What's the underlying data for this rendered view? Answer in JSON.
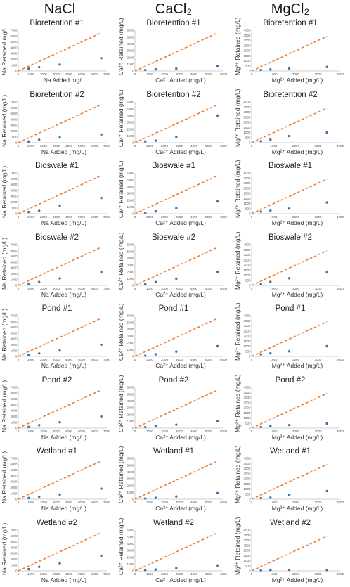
{
  "columns": [
    "NaCl",
    "CaCl₂",
    "MgCl₂"
  ],
  "chart_data": [
    {
      "id": "nacl-bioretention-1",
      "type": "scatter",
      "title": "Bioretention #1",
      "xlabel": "Na Added mg/L",
      "ylabel": "Na Retained mg/L",
      "xlim": [
        0,
        7000
      ],
      "ylim": [
        0,
        7000
      ],
      "x_ticks": [
        0,
        1000,
        2000,
        3000,
        4000,
        5000,
        6000,
        7000
      ],
      "y_ticks": [
        0,
        1000,
        2000,
        3000,
        4000,
        5000,
        6000,
        7000
      ],
      "x": [
        820,
        1650,
        3280,
        6560
      ],
      "y": [
        400,
        650,
        1100,
        2200
      ],
      "line": {
        "name": "",
        "x": [
          0,
          6560
        ],
        "y": [
          0,
          6560
        ]
      }
    },
    {
      "id": "cacl2-bioretention-1",
      "type": "scatter",
      "title": "Bioretention #1",
      "xlabel": "Ca²⁺ Added (mg/L)",
      "ylabel": "Ca²⁺ Retained (mg/L)",
      "xlim": [
        0,
        6000
      ],
      "ylim": [
        0,
        6000
      ],
      "x_ticks": [
        0,
        1000,
        2000,
        3000,
        4000,
        5000,
        6000
      ],
      "y_ticks": [
        0,
        1000,
        2000,
        3000,
        4000,
        5000,
        6000
      ],
      "x": [
        700,
        1400,
        2800,
        5600
      ],
      "y": [
        150,
        250,
        350,
        700
      ],
      "line": {
        "name": "",
        "x": [
          0,
          5600
        ],
        "y": [
          0,
          5600
        ]
      }
    },
    {
      "id": "mgcl2-bioretention-1",
      "type": "scatter",
      "title": "Bioretention #1",
      "xlabel": "Mg²⁺ Added (mg/L)",
      "ylabel": "Mg²⁺ Retained (mg/L)",
      "xlim": [
        0,
        4000
      ],
      "ylim": [
        0,
        4000
      ],
      "x_ticks": [
        0,
        1000,
        2000,
        3000,
        4000
      ],
      "y_ticks": [
        0,
        500,
        1000,
        1500,
        2000,
        2500,
        3000,
        3500,
        4000
      ],
      "x": [
        420,
        850,
        1700,
        3400
      ],
      "y": [
        100,
        150,
        250,
        400
      ],
      "line": {
        "name": "",
        "x": [
          0,
          3400
        ],
        "y": [
          0,
          3400
        ]
      }
    },
    {
      "id": "nacl-bioretention-2",
      "type": "scatter",
      "title": "Bioretention #2",
      "xlabel": "Na Added (mg/L)",
      "ylabel": "Na Retained (mg/L)",
      "xlim": [
        0,
        7000
      ],
      "ylim": [
        0,
        7000
      ],
      "x_ticks": [
        0,
        1000,
        2000,
        3000,
        4000,
        5000,
        6000,
        7000
      ],
      "y_ticks": [
        0,
        1000,
        2000,
        3000,
        4000,
        5000,
        6000,
        7000
      ],
      "x": [
        820,
        1650,
        3280,
        6560
      ],
      "y": [
        200,
        500,
        900,
        1400
      ],
      "line": {
        "name": "",
        "x": [
          0,
          6560
        ],
        "y": [
          0,
          6560
        ]
      }
    },
    {
      "id": "cacl2-bioretention-2",
      "type": "scatter",
      "title": "Bioretention #2",
      "xlabel": "Ca²⁺ Added (mg/L)",
      "ylabel": "Ca²⁺ Retained (mg/L)",
      "xlim": [
        0,
        6000
      ],
      "ylim": [
        0,
        6000
      ],
      "x_ticks": [
        0,
        1000,
        2000,
        3000,
        4000,
        5000,
        6000
      ],
      "y_ticks": [
        0,
        1000,
        2000,
        3000,
        4000,
        5000,
        6000
      ],
      "x": [
        700,
        1400,
        2800,
        5600
      ],
      "y": [
        200,
        300,
        800,
        4000
      ],
      "line": {
        "name": "",
        "x": [
          0,
          5600
        ],
        "y": [
          0,
          5600
        ]
      }
    },
    {
      "id": "mgcl2-bioretention-2",
      "type": "scatter",
      "title": "Bioretention #2",
      "xlabel": "Mg²⁺ Added (mg/L)",
      "ylabel": "Mg²⁺ Retained (mg/L)",
      "xlim": [
        0,
        4000
      ],
      "ylim": [
        0,
        4000
      ],
      "x_ticks": [
        0,
        1000,
        2000,
        3000,
        4000
      ],
      "y_ticks": [
        0,
        500,
        1000,
        1500,
        2000,
        2500,
        3000,
        3500,
        4000
      ],
      "x": [
        420,
        850,
        1700,
        3400
      ],
      "y": [
        150,
        300,
        650,
        1000
      ],
      "line": {
        "name": "",
        "x": [
          0,
          3400
        ],
        "y": [
          0,
          3400
        ]
      }
    },
    {
      "id": "nacl-bioswale-1",
      "type": "scatter",
      "title": "Bioswale #1",
      "xlabel": "Na Added (mg/L)",
      "ylabel": "Na Retained (mg/L)",
      "xlim": [
        0,
        7000
      ],
      "ylim": [
        0,
        7000
      ],
      "x_ticks": [
        0,
        1000,
        2000,
        3000,
        4000,
        5000,
        6000,
        7000
      ],
      "y_ticks": [
        0,
        1000,
        2000,
        3000,
        4000,
        5000,
        6000,
        7000
      ],
      "x": [
        820,
        1650,
        3280,
        6560
      ],
      "y": [
        300,
        500,
        1400,
        2700
      ],
      "line": {
        "name": "",
        "x": [
          0,
          6560
        ],
        "y": [
          0,
          6560
        ]
      }
    },
    {
      "id": "cacl2-bioswale-1",
      "type": "scatter",
      "title": "Bioswale #1",
      "xlabel": "Ca²⁺ Added (mg/L)",
      "ylabel": "Ca²⁺ Retained (mg/L)",
      "xlim": [
        0,
        6000
      ],
      "ylim": [
        0,
        6000
      ],
      "x_ticks": [
        0,
        1000,
        2000,
        3000,
        4000,
        5000,
        6000
      ],
      "y_ticks": [
        0,
        1000,
        2000,
        3000,
        4000,
        5000,
        6000
      ],
      "x": [
        700,
        1400,
        2800,
        5600
      ],
      "y": [
        150,
        350,
        800,
        1800
      ],
      "line": {
        "name": "",
        "x": [
          0,
          5600
        ],
        "y": [
          0,
          5600
        ]
      }
    },
    {
      "id": "mgcl2-bioswale-1",
      "type": "scatter",
      "title": "Bioswale #1",
      "xlabel": "Mg²⁺ Added (mg/L)",
      "ylabel": "Mg²⁺ Retained (mg/L)",
      "xlim": [
        0,
        4000
      ],
      "ylim": [
        0,
        4000
      ],
      "x_ticks": [
        0,
        1000,
        2000,
        3000,
        4000
      ],
      "y_ticks": [
        0,
        500,
        1000,
        1500,
        2000,
        2500,
        3000,
        3500,
        4000
      ],
      "x": [
        420,
        850,
        1700,
        3400
      ],
      "y": [
        200,
        300,
        500,
        1100
      ],
      "line": {
        "name": "",
        "x": [
          0,
          3400
        ],
        "y": [
          0,
          3400
        ]
      }
    },
    {
      "id": "nacl-bioswale-2",
      "type": "scatter",
      "title": "Bioswale #2",
      "xlabel": "Na Added (mg/L)",
      "ylabel": "Na Retained (mg/L)",
      "xlim": [
        0,
        7000
      ],
      "ylim": [
        0,
        7000
      ],
      "x_ticks": [
        0,
        1000,
        2000,
        3000,
        4000,
        5000,
        6000,
        7000
      ],
      "y_ticks": [
        0,
        1000,
        2000,
        3000,
        4000,
        5000,
        6000,
        7000
      ],
      "x": [
        820,
        1650,
        3280,
        6560
      ],
      "y": [
        300,
        600,
        1200,
        2300
      ],
      "line": {
        "name": "",
        "x": [
          0,
          6560
        ],
        "y": [
          0,
          6560
        ]
      }
    },
    {
      "id": "cacl2-bioswale-2",
      "type": "scatter",
      "title": "Bioswale #2",
      "xlabel": "Ca²⁺ Added (mg/L)",
      "ylabel": "Ca²⁺ Retained (mg/L)",
      "xlim": [
        0,
        6000
      ],
      "ylim": [
        0,
        6000
      ],
      "x_ticks": [
        0,
        1000,
        2000,
        3000,
        4000,
        5000,
        6000
      ],
      "y_ticks": [
        0,
        1000,
        2000,
        3000,
        4000,
        5000,
        6000
      ],
      "x": [
        700,
        1400,
        2800,
        5600
      ],
      "y": [
        200,
        500,
        1000,
        2000
      ],
      "line": {
        "name": "",
        "x": [
          0,
          5600
        ],
        "y": [
          0,
          5600
        ]
      }
    },
    {
      "id": "mgcl2-bioswale-2",
      "type": "scatter",
      "title": "Bioswale #2",
      "xlabel": "Mg²⁺ Added (mg/L)",
      "ylabel": "Mg²⁺ Retained (mg/L)",
      "xlim": [
        0,
        4000
      ],
      "ylim": [
        0,
        4000
      ],
      "x_ticks": [
        0,
        1000,
        2000,
        3000,
        4000
      ],
      "y_ticks": [
        0,
        500,
        1000,
        1500,
        2000,
        2500,
        3000,
        3500,
        4000
      ],
      "x": [
        420,
        850,
        1700,
        3400
      ],
      "y": [
        150,
        350,
        700,
        1300
      ],
      "line": {
        "name": "",
        "x": [
          0,
          3400
        ],
        "y": [
          0,
          3400
        ]
      }
    },
    {
      "id": "nacl-pond-1",
      "type": "scatter",
      "title": "Pond #1",
      "xlabel": "Na Added (mg/L)",
      "ylabel": "Na Retained (mg/L)",
      "xlim": [
        0,
        7000
      ],
      "ylim": [
        0,
        7000
      ],
      "x_ticks": [
        0,
        1000,
        2000,
        3000,
        4000,
        5000,
        6000,
        7000
      ],
      "y_ticks": [
        0,
        1000,
        2000,
        3000,
        4000,
        5000,
        6000,
        7000
      ],
      "x": [
        820,
        1650,
        3280,
        6560
      ],
      "y": [
        250,
        500,
        1000,
        2000
      ],
      "line": {
        "name": "",
        "x": [
          0,
          6560
        ],
        "y": [
          0,
          6560
        ]
      }
    },
    {
      "id": "cacl2-pond-1",
      "type": "scatter",
      "title": "Pond #1",
      "xlabel": "Ca²⁺ Added (mg/L)",
      "ylabel": "Ca²⁺ Retained (mg/L)",
      "xlim": [
        0,
        6000
      ],
      "ylim": [
        0,
        6000
      ],
      "x_ticks": [
        0,
        1000,
        2000,
        3000,
        4000,
        5000,
        6000
      ],
      "y_ticks": [
        0,
        1000,
        2000,
        3000,
        4000,
        5000,
        6000
      ],
      "x": [
        700,
        1400,
        2800,
        5600
      ],
      "y": [
        100,
        300,
        700,
        1500
      ],
      "line": {
        "name": "",
        "x": [
          0,
          5600
        ],
        "y": [
          0,
          5600
        ]
      }
    },
    {
      "id": "mgcl2-pond-1",
      "type": "scatter",
      "title": "Pond #1",
      "xlabel": "Mg²⁺ Added (mg/L)",
      "ylabel": "Mg²⁺ Retained (mg/L)",
      "xlim": [
        0,
        4000
      ],
      "ylim": [
        0,
        4000
      ],
      "x_ticks": [
        0,
        1000,
        2000,
        3000,
        4000
      ],
      "y_ticks": [
        0,
        500,
        1000,
        1500,
        2000,
        2500,
        3000,
        3500,
        4000
      ],
      "x": [
        420,
        850,
        1700,
        3400
      ],
      "y": [
        200,
        300,
        500,
        1000
      ],
      "line": {
        "name": "",
        "x": [
          0,
          3400
        ],
        "y": [
          0,
          3400
        ]
      }
    },
    {
      "id": "nacl-pond-2",
      "type": "scatter",
      "title": "Pond #2",
      "xlabel": "Na Added (mg/L)",
      "ylabel": "Na Retained (mg/L)",
      "xlim": [
        0,
        7000
      ],
      "ylim": [
        0,
        7000
      ],
      "x_ticks": [
        0,
        1000,
        2000,
        3000,
        4000,
        5000,
        6000,
        7000
      ],
      "y_ticks": [
        0,
        1000,
        2000,
        3000,
        4000,
        5000,
        6000,
        7000
      ],
      "x": [
        820,
        1650,
        3280,
        6560
      ],
      "y": [
        200,
        500,
        1000,
        2000
      ],
      "line": {
        "name": "",
        "x": [
          0,
          6560
        ],
        "y": [
          0,
          6560
        ]
      }
    },
    {
      "id": "cacl2-pond-2",
      "type": "scatter",
      "title": "Pond #2",
      "xlabel": "Ca²⁺ Added (mg/L)",
      "ylabel": "Ca²⁺ Retained (mg/L)",
      "xlim": [
        0,
        6000
      ],
      "ylim": [
        0,
        6000
      ],
      "x_ticks": [
        0,
        1000,
        2000,
        3000,
        4000,
        5000,
        6000
      ],
      "y_ticks": [
        0,
        1000,
        2000,
        3000,
        4000,
        5000,
        6000
      ],
      "x": [
        700,
        1400,
        2800,
        5600
      ],
      "y": [
        150,
        300,
        500,
        1000
      ],
      "line": {
        "name": "",
        "x": [
          0,
          5600
        ],
        "y": [
          0,
          5600
        ]
      }
    },
    {
      "id": "mgcl2-pond-2",
      "type": "scatter",
      "title": "Pond #2",
      "xlabel": "Mg²⁺ Added (mg/L)",
      "ylabel": "Mg²⁺ Retained (mg/L)",
      "xlim": [
        0,
        4000
      ],
      "ylim": [
        0,
        4000
      ],
      "x_ticks": [
        0,
        1000,
        2000,
        3000,
        4000
      ],
      "y_ticks": [
        0,
        500,
        1000,
        1500,
        2000,
        2500,
        3000,
        3500,
        4000
      ],
      "x": [
        420,
        850,
        1700,
        3400
      ],
      "y": [
        100,
        200,
        300,
        450
      ],
      "line": {
        "name": "",
        "x": [
          0,
          3400
        ],
        "y": [
          0,
          3400
        ]
      }
    },
    {
      "id": "nacl-wetland-1",
      "type": "scatter",
      "title": "Wetland #1",
      "xlabel": "Na Added (mg/L)",
      "ylabel": "Na Retained (mg/L)",
      "xlim": [
        0,
        7000
      ],
      "ylim": [
        0,
        7000
      ],
      "x_ticks": [
        0,
        1000,
        2000,
        3000,
        4000,
        5000,
        6000,
        7000
      ],
      "y_ticks": [
        0,
        1000,
        2000,
        3000,
        4000,
        5000,
        6000,
        7000
      ],
      "x": [
        820,
        1650,
        3280,
        6560
      ],
      "y": [
        200,
        400,
        800,
        1800
      ],
      "line": {
        "name": "",
        "x": [
          0,
          6560
        ],
        "y": [
          0,
          6560
        ]
      }
    },
    {
      "id": "cacl2-wetland-1",
      "type": "scatter",
      "title": "Wetland #1",
      "xlabel": "Ca²⁺ Added (mg/L)",
      "ylabel": "Ca²⁺ Retained (mg/L)",
      "xlim": [
        0,
        6000
      ],
      "ylim": [
        0,
        6000
      ],
      "x_ticks": [
        0,
        1000,
        2000,
        3000,
        4000,
        5000,
        6000
      ],
      "y_ticks": [
        0,
        1000,
        2000,
        3000,
        4000,
        5000,
        6000
      ],
      "x": [
        700,
        1400,
        2800,
        5600
      ],
      "y": [
        100,
        200,
        400,
        900
      ],
      "line": {
        "name": "",
        "x": [
          0,
          5600
        ],
        "y": [
          0,
          5600
        ]
      }
    },
    {
      "id": "mgcl2-wetland-1",
      "type": "scatter",
      "title": "Wetland #1",
      "xlabel": "Mg²⁺ Added (mg/L)",
      "ylabel": "Mg²⁺ Retained (mg/L)",
      "xlim": [
        0,
        4000
      ],
      "ylim": [
        0,
        4000
      ],
      "x_ticks": [
        0,
        1000,
        2000,
        3000,
        4000
      ],
      "y_ticks": [
        0,
        500,
        1000,
        1500,
        2000,
        2500,
        3000,
        3500,
        4000
      ],
      "x": [
        420,
        850,
        1700,
        3400
      ],
      "y": [
        100,
        150,
        400,
        800
      ],
      "line": {
        "name": "",
        "x": [
          0,
          3400
        ],
        "y": [
          0,
          3400
        ]
      }
    },
    {
      "id": "nacl-wetland-2",
      "type": "scatter",
      "title": "Wetland #2",
      "xlabel": "Na Added (mg/L)",
      "ylabel": "Na Retained (mg/L)",
      "xlim": [
        0,
        7000
      ],
      "ylim": [
        0,
        7000
      ],
      "x_ticks": [
        0,
        1000,
        2000,
        3000,
        4000,
        5000,
        6000,
        7000
      ],
      "y_ticks": [
        0,
        1000,
        2000,
        3000,
        4000,
        5000,
        6000,
        7000
      ],
      "x": [
        820,
        1650,
        3280,
        6560
      ],
      "y": [
        300,
        700,
        1300,
        2600
      ],
      "line": {
        "name": "",
        "x": [
          0,
          6560
        ],
        "y": [
          0,
          6560
        ]
      }
    },
    {
      "id": "cacl2-wetland-2",
      "type": "scatter",
      "title": "Wetland #2",
      "xlabel": "Ca²⁺ Added (mg/L)",
      "ylabel": "Ca²⁺ Retained (mg/L)",
      "xlim": [
        0,
        6000
      ],
      "ylim": [
        0,
        6000
      ],
      "x_ticks": [
        0,
        1000,
        2000,
        3000,
        4000,
        5000,
        6000
      ],
      "y_ticks": [
        0,
        1000,
        2000,
        3000,
        4000,
        5000,
        6000
      ],
      "x": [
        700,
        1400,
        2800,
        5600
      ],
      "y": [
        100,
        200,
        400,
        800
      ],
      "line": {
        "name": "",
        "x": [
          0,
          5600
        ],
        "y": [
          0,
          5600
        ]
      }
    },
    {
      "id": "mgcl2-wetland-2",
      "type": "scatter",
      "title": "Wetland #2",
      "xlabel": "Mg²⁺ Added (mg/L)",
      "ylabel": "Mg²⁺ Retained (mg/L)",
      "xlim": [
        0,
        4000
      ],
      "ylim": [
        0,
        4000
      ],
      "x_ticks": [
        0,
        1000,
        2000,
        3000,
        4000
      ],
      "y_ticks": [
        0,
        500,
        1000,
        1500,
        2000,
        2500,
        3000,
        3500,
        4000
      ],
      "x": [
        420,
        850,
        1700,
        3400
      ],
      "y": [
        50,
        80,
        100,
        80
      ],
      "line": {
        "name": "",
        "x": [
          0,
          3400
        ],
        "y": [
          0,
          3400
        ]
      }
    }
  ],
  "colors": {
    "points": "#2e75b6",
    "line": "#ed7d31",
    "axis": "#bfbfbf"
  }
}
